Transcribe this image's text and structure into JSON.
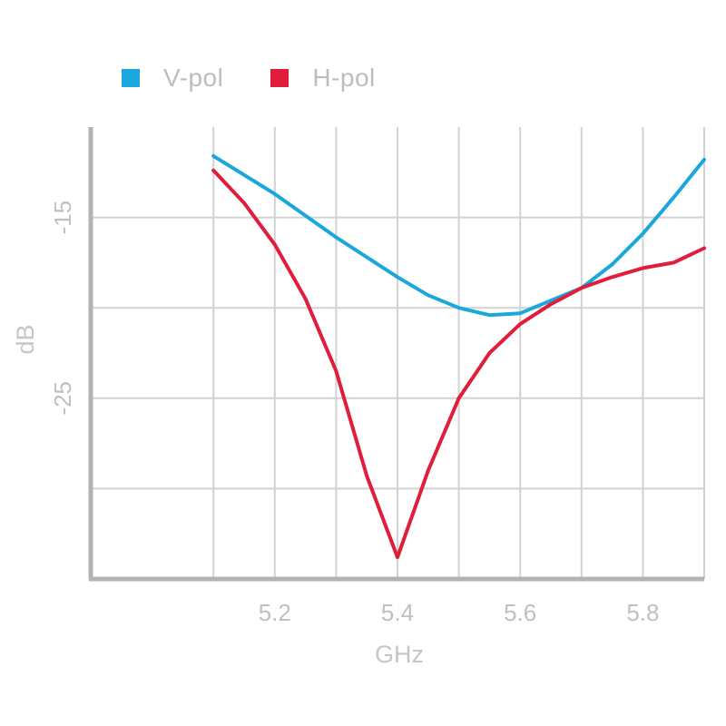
{
  "legend": {
    "items": [
      {
        "label": "V-pol",
        "color": "#1aa7dc"
      },
      {
        "label": "H-pol",
        "color": "#e01e3c"
      }
    ]
  },
  "chart_data": {
    "type": "line",
    "xlabel": "GHz",
    "ylabel": "dB",
    "xlim": [
      4.9,
      5.9
    ],
    "ylim": [
      -35,
      -10
    ],
    "x_ticks": [
      5.2,
      5.4,
      5.6,
      5.8
    ],
    "x_tick_labels": [
      "5.2",
      "5.4",
      "5.6",
      "5.8"
    ],
    "x_gridlines": [
      5.1,
      5.2,
      5.3,
      5.4,
      5.5,
      5.6,
      5.7,
      5.8,
      5.9
    ],
    "y_ticks": [
      -15,
      -25
    ],
    "y_tick_labels": [
      "-15",
      "-25"
    ],
    "y_gridlines": [
      -15,
      -20,
      -25,
      -30
    ],
    "grid": true,
    "legend_position": "top-left",
    "series": [
      {
        "name": "V-pol",
        "color": "#1aa7dc",
        "x": [
          5.1,
          5.2,
          5.3,
          5.4,
          5.45,
          5.5,
          5.55,
          5.6,
          5.65,
          5.7,
          5.75,
          5.8,
          5.85,
          5.9
        ],
        "y": [
          -11.6,
          -13.7,
          -16.1,
          -18.3,
          -19.3,
          -20.0,
          -20.4,
          -20.3,
          -19.6,
          -18.9,
          -17.6,
          -15.9,
          -13.9,
          -11.8
        ]
      },
      {
        "name": "H-pol",
        "color": "#e01e3c",
        "x": [
          5.1,
          5.15,
          5.2,
          5.25,
          5.3,
          5.35,
          5.4,
          5.45,
          5.5,
          5.55,
          5.6,
          5.65,
          5.7,
          5.75,
          5.8,
          5.85,
          5.9
        ],
        "y": [
          -12.4,
          -14.2,
          -16.5,
          -19.5,
          -23.5,
          -29.3,
          -33.8,
          -29.0,
          -25.0,
          -22.5,
          -20.9,
          -19.8,
          -18.9,
          -18.3,
          -17.8,
          -17.5,
          -16.7
        ]
      }
    ]
  }
}
